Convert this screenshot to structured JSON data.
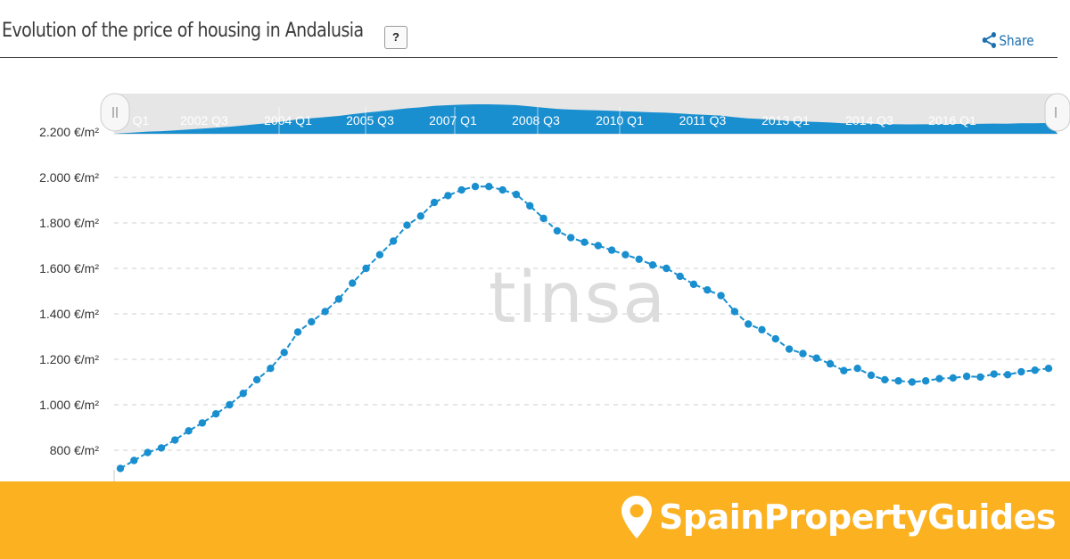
{
  "header": {
    "title": "Evolution of the price of housing in Andalusia",
    "help_label": "?",
    "share_label": "Share"
  },
  "chart_data": {
    "type": "line",
    "title": "Evolution of the price of housing in Andalusia",
    "ylabel": "",
    "xlabel": "",
    "unit": "€/m²",
    "ylim": [
      700,
      2250
    ],
    "yticks": [
      "800 €/m²",
      "1.000 €/m²",
      "1.200 €/m²",
      "1.400 €/m²",
      "1.600 €/m²",
      "1.800 €/m²",
      "2.000 €/m²",
      "2.200 €/m²"
    ],
    "ytick_values": [
      800,
      1000,
      1200,
      1400,
      1600,
      1800,
      2000,
      2200
    ],
    "grid": true,
    "navigator_labels": [
      "Q1",
      "2002 Q3",
      "2004 Q1",
      "2005 Q3",
      "2007 Q1",
      "2008 Q3",
      "2010 Q1",
      "2011 Q3",
      "2013 Q1",
      "2014 Q3",
      "2016 Q1"
    ],
    "series": [
      {
        "color": "#1a8fcf",
        "values": [
          720,
          755,
          790,
          810,
          845,
          885,
          920,
          960,
          1000,
          1050,
          1110,
          1160,
          1230,
          1320,
          1365,
          1410,
          1465,
          1535,
          1600,
          1660,
          1720,
          1790,
          1830,
          1890,
          1920,
          1945,
          1960,
          1960,
          1945,
          1925,
          1875,
          1820,
          1765,
          1735,
          1715,
          1700,
          1680,
          1660,
          1640,
          1615,
          1600,
          1565,
          1530,
          1505,
          1480,
          1410,
          1355,
          1330,
          1290,
          1245,
          1225,
          1205,
          1180,
          1150,
          1160,
          1130,
          1110,
          1105,
          1100,
          1105,
          1115,
          1118,
          1125,
          1122,
          1135,
          1132,
          1145,
          1152,
          1160
        ]
      }
    ]
  },
  "watermark": "tinsa",
  "banner": {
    "logo_text": "SpainPropertyGuides",
    "background": "#fbb120"
  }
}
